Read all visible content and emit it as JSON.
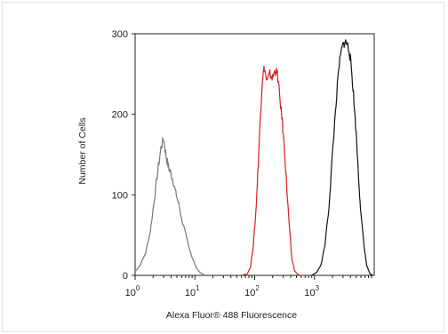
{
  "chart_data": {
    "type": "line",
    "xlabel": "Alexa Fluor® 488 Fluorescence",
    "ylabel": "Number of Cells",
    "x_scale": "log",
    "xlim": [
      1,
      10000
    ],
    "ylim": [
      0,
      300
    ],
    "x_ticks": [
      {
        "base": "10",
        "exp": "0",
        "value": 1
      },
      {
        "base": "10",
        "exp": "1",
        "value": 10
      },
      {
        "base": "10",
        "exp": "2",
        "value": 100
      },
      {
        "base": "10",
        "exp": "3",
        "value": 1000
      }
    ],
    "y_ticks": [
      "0",
      "100",
      "200",
      "300"
    ],
    "grid": false,
    "series": [
      {
        "color": "#777777",
        "points": [
          [
            1.0,
            5
          ],
          [
            1.2,
            12
          ],
          [
            1.5,
            28
          ],
          [
            1.8,
            55
          ],
          [
            2.1,
            95
          ],
          [
            2.4,
            130
          ],
          [
            2.7,
            158
          ],
          [
            3.0,
            170
          ],
          [
            3.3,
            148
          ],
          [
            3.6,
            135
          ],
          [
            3.9,
            128
          ],
          [
            4.3,
            118
          ],
          [
            4.8,
            102
          ],
          [
            5.4,
            88
          ],
          [
            6.0,
            70
          ],
          [
            6.8,
            55
          ],
          [
            7.8,
            38
          ],
          [
            9.0,
            22
          ],
          [
            10.5,
            10
          ],
          [
            12,
            4
          ],
          [
            14,
            1
          ]
        ]
      },
      {
        "color": "#d42020",
        "points": [
          [
            60,
            0
          ],
          [
            75,
            2
          ],
          [
            85,
            10
          ],
          [
            95,
            38
          ],
          [
            105,
            80
          ],
          [
            115,
            140
          ],
          [
            125,
            200
          ],
          [
            135,
            245
          ],
          [
            145,
            258
          ],
          [
            160,
            240
          ],
          [
            180,
            250
          ],
          [
            200,
            245
          ],
          [
            220,
            255
          ],
          [
            240,
            250
          ],
          [
            260,
            225
          ],
          [
            290,
            190
          ],
          [
            320,
            150
          ],
          [
            350,
            100
          ],
          [
            385,
            55
          ],
          [
            420,
            20
          ],
          [
            470,
            5
          ],
          [
            550,
            0
          ]
        ]
      },
      {
        "color": "#111111",
        "points": [
          [
            900,
            0
          ],
          [
            1100,
            4
          ],
          [
            1300,
            14
          ],
          [
            1500,
            38
          ],
          [
            1750,
            85
          ],
          [
            2000,
            150
          ],
          [
            2300,
            215
          ],
          [
            2600,
            262
          ],
          [
            2900,
            283
          ],
          [
            3200,
            290
          ],
          [
            3500,
            288
          ],
          [
            3800,
            280
          ],
          [
            4100,
            262
          ],
          [
            4500,
            225
          ],
          [
            5000,
            175
          ],
          [
            5500,
            120
          ],
          [
            6000,
            75
          ],
          [
            6800,
            35
          ],
          [
            7500,
            12
          ],
          [
            8500,
            2
          ],
          [
            9500,
            0
          ]
        ]
      }
    ]
  }
}
